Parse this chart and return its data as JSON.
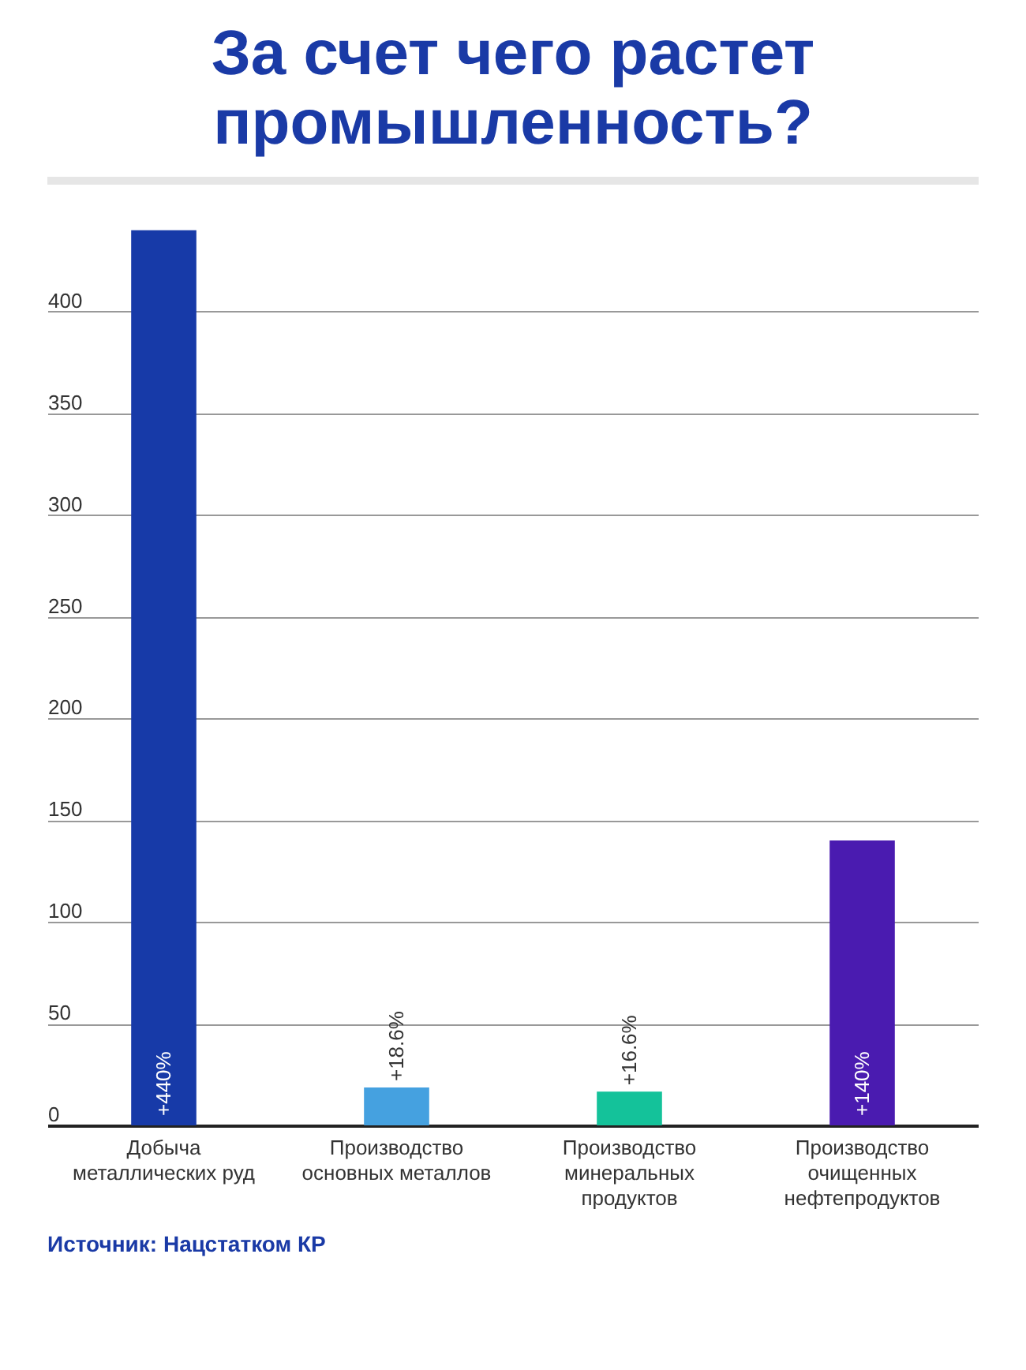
{
  "chart_data": {
    "type": "bar",
    "title": "За счет чего растет промышленность?",
    "categories": [
      "Добыча металлических руд",
      "Производство основных металлов",
      "Производство минеральных продуктов",
      "Производство очищенных нефтепродуктов"
    ],
    "values": [
      440,
      18.6,
      16.6,
      140
    ],
    "colors": [
      "#173aa8",
      "#45a1e0",
      "#14c29a",
      "#4a1bb0"
    ],
    "value_labels": [
      "+440%",
      "+18.6%",
      "+16.6%",
      "+140%"
    ],
    "ylim": [
      0,
      450
    ],
    "yticks": [
      0,
      50,
      100,
      150,
      200,
      250,
      300,
      350,
      400
    ],
    "grid": "y",
    "annotations": [
      "Источник: Нацстатком КР"
    ]
  }
}
